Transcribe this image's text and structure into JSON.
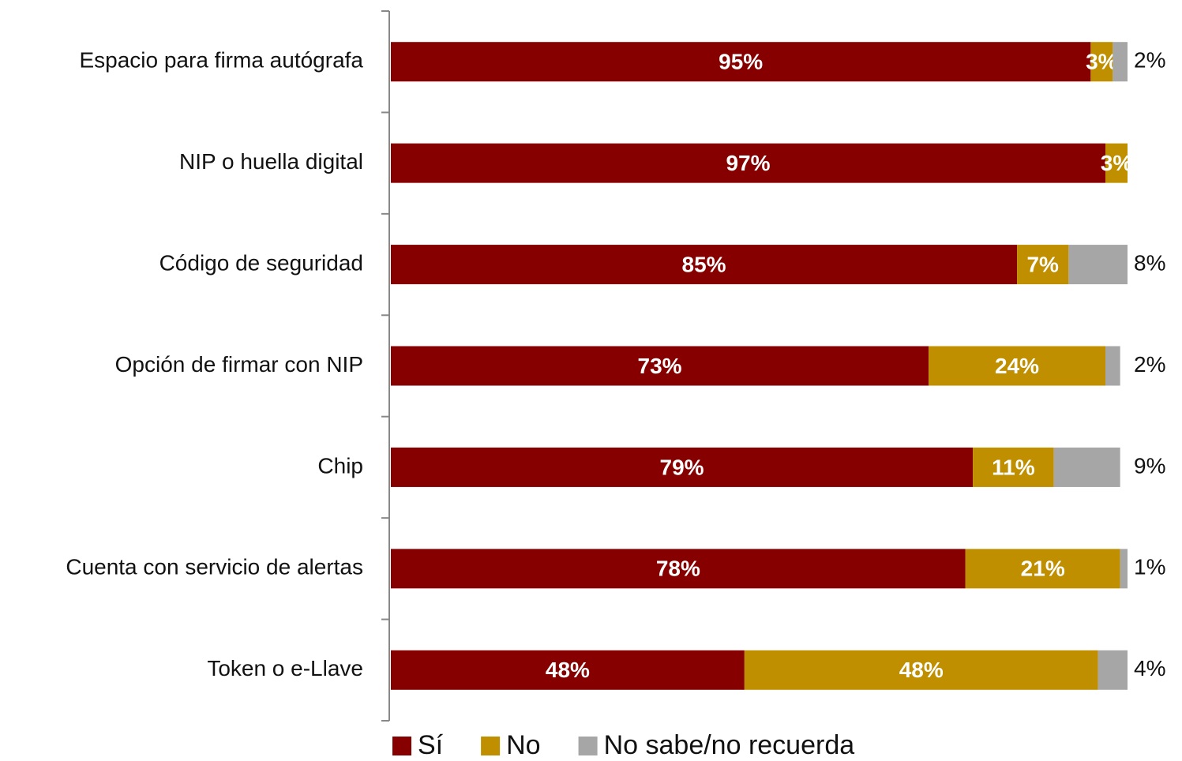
{
  "chart_data": {
    "type": "stacked-barh",
    "categories": [
      "Espacio para firma autógrafa",
      "NIP o huella digital",
      "Código de seguridad",
      "Opción de firmar con NIP",
      "Chip",
      "Cuenta con servicio de alertas",
      "Token o e-Llave"
    ],
    "series": [
      {
        "name": "Sí",
        "color": "#870000",
        "values": [
          95,
          97,
          85,
          73,
          79,
          78,
          48
        ],
        "value_labels": [
          "95%",
          "97%",
          "85%",
          "73%",
          "79%",
          "78%",
          "48%"
        ]
      },
      {
        "name": "No",
        "color": "#bf8f00",
        "values": [
          3,
          3,
          7,
          24,
          11,
          21,
          48
        ],
        "value_labels": [
          "3%",
          "3%",
          "7%",
          "24%",
          "11%",
          "21%",
          "48%"
        ]
      },
      {
        "name": "No sabe/no recuerda",
        "color": "#a6a6a6",
        "values": [
          2,
          null,
          8,
          2,
          9,
          1,
          4
        ],
        "value_labels": [
          "2%",
          null,
          "8%",
          "2%",
          "9%",
          "1%",
          "4%"
        ]
      }
    ],
    "xlim": [
      0,
      100
    ]
  }
}
